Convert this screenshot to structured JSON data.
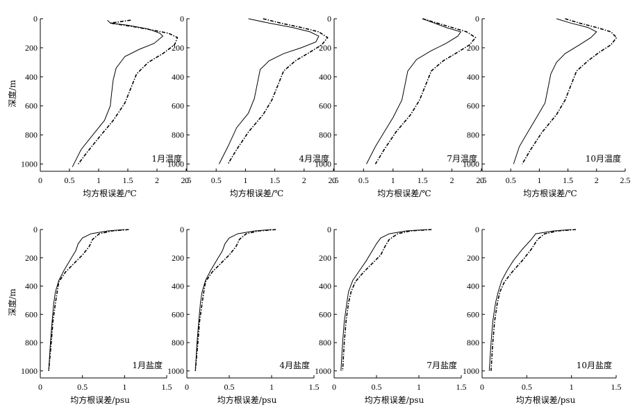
{
  "chart_data": [
    {
      "type": "line",
      "panel_label": "1月温度",
      "xlabel": "均方根误差/℃",
      "ylabel": "深度/m",
      "xlim": [
        0,
        2.5
      ],
      "ylim": [
        1050,
        0
      ],
      "xticks": [
        "0",
        "0.5",
        "1",
        "1.5",
        "2",
        "2.5"
      ],
      "yticks": [
        "0",
        "200",
        "400",
        "600",
        "800",
        "1000"
      ],
      "series": [
        {
          "style": "solid",
          "x": [
            1.15,
            1.2,
            1.5,
            1.85,
            2.05,
            2.1,
            1.95,
            1.7,
            1.45,
            1.3,
            1.25,
            1.22,
            1.2,
            1.1,
            0.9,
            0.7,
            0.55
          ],
          "y": [
            10,
            30,
            45,
            70,
            100,
            120,
            170,
            210,
            260,
            340,
            420,
            520,
            600,
            700,
            800,
            900,
            1020
          ]
        },
        {
          "style": "dashed",
          "x": [
            1.55,
            1.2,
            1.6,
            1.95,
            2.2,
            2.35,
            2.3,
            2.1,
            1.85,
            1.65,
            1.55,
            1.45,
            1.25,
            1.0,
            0.8,
            0.65
          ],
          "y": [
            10,
            30,
            55,
            80,
            100,
            130,
            180,
            240,
            300,
            380,
            480,
            580,
            700,
            820,
            920,
            1000
          ]
        }
      ]
    },
    {
      "type": "line",
      "panel_label": "4月温度",
      "xlabel": "均方根误差/℃",
      "ylabel": "",
      "xlim": [
        0,
        2.5
      ],
      "ylim": [
        1050,
        0
      ],
      "xticks": [
        "0",
        "0.5",
        "1",
        "1.5",
        "2",
        "2.5"
      ],
      "yticks": [
        "0",
        "200",
        "400",
        "600",
        "800",
        "1000"
      ],
      "series": [
        {
          "style": "solid",
          "x": [
            1.05,
            1.4,
            1.8,
            2.1,
            2.25,
            2.2,
            1.95,
            1.65,
            1.4,
            1.25,
            1.2,
            1.15,
            1.05,
            0.85,
            0.7,
            0.55
          ],
          "y": [
            0,
            30,
            60,
            90,
            120,
            160,
            200,
            240,
            290,
            350,
            450,
            550,
            650,
            750,
            880,
            1000
          ]
        },
        {
          "style": "dashed",
          "x": [
            1.3,
            1.6,
            1.95,
            2.25,
            2.4,
            2.3,
            2.1,
            1.85,
            1.65,
            1.55,
            1.45,
            1.3,
            1.05,
            0.85,
            0.7
          ],
          "y": [
            0,
            30,
            60,
            90,
            130,
            180,
            230,
            290,
            360,
            460,
            560,
            660,
            780,
            900,
            1000
          ]
        }
      ]
    },
    {
      "type": "line",
      "panel_label": "7月温度",
      "xlabel": "均方根误差/℃",
      "ylabel": "",
      "xlim": [
        0,
        2.5
      ],
      "ylim": [
        1050,
        0
      ],
      "xticks": [
        "0",
        "0.5",
        "1",
        "1.5",
        "2",
        "2.5"
      ],
      "yticks": [
        "0",
        "200",
        "400",
        "600",
        "800",
        "1000"
      ],
      "series": [
        {
          "style": "solid",
          "x": [
            1.5,
            1.7,
            1.9,
            2.15,
            2.1,
            1.9,
            1.65,
            1.4,
            1.25,
            1.2,
            1.15,
            1.0,
            0.85,
            0.7,
            0.55
          ],
          "y": [
            0,
            30,
            60,
            90,
            120,
            170,
            220,
            280,
            360,
            460,
            560,
            680,
            780,
            880,
            1000
          ]
        },
        {
          "style": "dashed",
          "x": [
            1.5,
            1.75,
            2.0,
            2.25,
            2.4,
            2.3,
            2.1,
            1.85,
            1.65,
            1.55,
            1.45,
            1.3,
            1.05,
            0.85,
            0.7
          ],
          "y": [
            0,
            30,
            60,
            90,
            130,
            180,
            230,
            290,
            360,
            460,
            560,
            660,
            780,
            900,
            1000
          ]
        }
      ]
    },
    {
      "type": "line",
      "panel_label": "10月温度",
      "xlabel": "均方根误差/℃",
      "ylabel": "",
      "xlim": [
        0,
        2.5
      ],
      "ylim": [
        1050,
        0
      ],
      "xticks": [
        "0",
        "0.5",
        "1",
        "1.5",
        "2",
        "2.5"
      ],
      "yticks": [
        "0",
        "200",
        "400",
        "600",
        "800",
        "1000"
      ],
      "series": [
        {
          "style": "solid",
          "x": [
            1.3,
            1.55,
            1.85,
            2.0,
            1.9,
            1.7,
            1.45,
            1.3,
            1.2,
            1.15,
            1.1,
            0.95,
            0.8,
            0.65,
            0.55
          ],
          "y": [
            0,
            30,
            60,
            90,
            130,
            180,
            240,
            300,
            380,
            480,
            580,
            680,
            780,
            880,
            1000
          ]
        },
        {
          "style": "dashed",
          "x": [
            1.45,
            1.7,
            2.0,
            2.25,
            2.35,
            2.25,
            2.05,
            1.85,
            1.65,
            1.55,
            1.45,
            1.3,
            1.05,
            0.85,
            0.7
          ],
          "y": [
            0,
            30,
            60,
            90,
            130,
            180,
            230,
            290,
            360,
            460,
            560,
            660,
            780,
            900,
            1000
          ]
        }
      ]
    },
    {
      "type": "line",
      "panel_label": "1月盐度",
      "xlabel": "均方根误差/psu",
      "ylabel": "深度/m",
      "xlim": [
        0,
        1.5
      ],
      "ylim": [
        1050,
        0
      ],
      "xticks": [
        "0",
        "0.5",
        "1",
        "1.5"
      ],
      "yticks": [
        "0",
        "200",
        "400",
        "600",
        "800",
        "1000"
      ],
      "series": [
        {
          "style": "solid",
          "x": [
            1.0,
            0.8,
            0.6,
            0.5,
            0.45,
            0.42,
            0.35,
            0.28,
            0.22,
            0.18,
            0.16,
            0.14,
            0.12,
            0.1
          ],
          "y": [
            0,
            10,
            30,
            60,
            100,
            150,
            220,
            290,
            360,
            440,
            520,
            650,
            800,
            1000
          ]
        },
        {
          "style": "dashed",
          "x": [
            1.05,
            0.85,
            0.7,
            0.62,
            0.58,
            0.5,
            0.4,
            0.3,
            0.22,
            0.2,
            0.18,
            0.15,
            0.13,
            0.1
          ],
          "y": [
            0,
            10,
            30,
            70,
            120,
            180,
            240,
            300,
            370,
            440,
            520,
            650,
            800,
            1000
          ]
        }
      ]
    },
    {
      "type": "line",
      "panel_label": "4月盐度",
      "xlabel": "均方根误差/psu",
      "ylabel": "",
      "xlim": [
        0,
        1.5
      ],
      "ylim": [
        1050,
        0
      ],
      "xticks": [
        "0",
        "0.5",
        "1",
        "1.5"
      ],
      "yticks": [
        "0",
        "200",
        "400",
        "600",
        "800",
        "1000"
      ],
      "series": [
        {
          "style": "solid",
          "x": [
            1.0,
            0.8,
            0.6,
            0.5,
            0.45,
            0.42,
            0.35,
            0.28,
            0.22,
            0.18,
            0.16,
            0.14,
            0.12,
            0.1
          ],
          "y": [
            0,
            10,
            30,
            60,
            100,
            150,
            220,
            290,
            360,
            440,
            520,
            650,
            800,
            1000
          ]
        },
        {
          "style": "dashed",
          "x": [
            1.05,
            0.85,
            0.7,
            0.62,
            0.58,
            0.5,
            0.4,
            0.3,
            0.22,
            0.2,
            0.18,
            0.15,
            0.13,
            0.1
          ],
          "y": [
            0,
            10,
            30,
            70,
            120,
            180,
            240,
            300,
            370,
            440,
            520,
            650,
            800,
            1000
          ]
        }
      ]
    },
    {
      "type": "line",
      "panel_label": "7月盐度",
      "xlabel": "均方根误差/psu",
      "ylabel": "",
      "xlim": [
        0,
        1.5
      ],
      "ylim": [
        1050,
        0
      ],
      "xticks": [
        "0",
        "0.5",
        "1",
        "1.5"
      ],
      "yticks": [
        "0",
        "200",
        "400",
        "600",
        "800",
        "1000"
      ],
      "series": [
        {
          "style": "solid",
          "x": [
            1.1,
            0.85,
            0.65,
            0.55,
            0.5,
            0.45,
            0.38,
            0.3,
            0.22,
            0.17,
            0.15,
            0.12,
            0.1,
            0.08
          ],
          "y": [
            0,
            10,
            30,
            60,
            100,
            150,
            220,
            290,
            360,
            440,
            520,
            650,
            800,
            1000
          ]
        },
        {
          "style": "dashed",
          "x": [
            1.15,
            0.9,
            0.75,
            0.65,
            0.6,
            0.55,
            0.45,
            0.35,
            0.25,
            0.2,
            0.17,
            0.14,
            0.12,
            0.1
          ],
          "y": [
            0,
            10,
            30,
            70,
            120,
            180,
            240,
            300,
            370,
            440,
            520,
            650,
            800,
            1000
          ]
        }
      ]
    },
    {
      "type": "line",
      "panel_label": "10月盐度",
      "xlabel": "均方根误差/psu",
      "ylabel": "",
      "xlim": [
        0,
        1.5
      ],
      "ylim": [
        1050,
        0
      ],
      "xticks": [
        "0",
        "0.5",
        "1",
        "1.5"
      ],
      "yticks": [
        "0",
        "200",
        "400",
        "600",
        "800",
        "1000"
      ],
      "series": [
        {
          "style": "solid",
          "x": [
            1.0,
            0.8,
            0.6,
            0.55,
            0.45,
            0.35,
            0.28,
            0.22,
            0.18,
            0.15,
            0.12,
            0.1,
            0.08
          ],
          "y": [
            0,
            10,
            30,
            70,
            140,
            220,
            290,
            360,
            440,
            520,
            650,
            800,
            1000
          ]
        },
        {
          "style": "dashed",
          "x": [
            1.05,
            0.85,
            0.7,
            0.62,
            0.55,
            0.45,
            0.35,
            0.25,
            0.2,
            0.17,
            0.14,
            0.12,
            0.1
          ],
          "y": [
            0,
            10,
            30,
            70,
            140,
            220,
            290,
            370,
            440,
            520,
            650,
            800,
            1000
          ]
        }
      ]
    }
  ]
}
